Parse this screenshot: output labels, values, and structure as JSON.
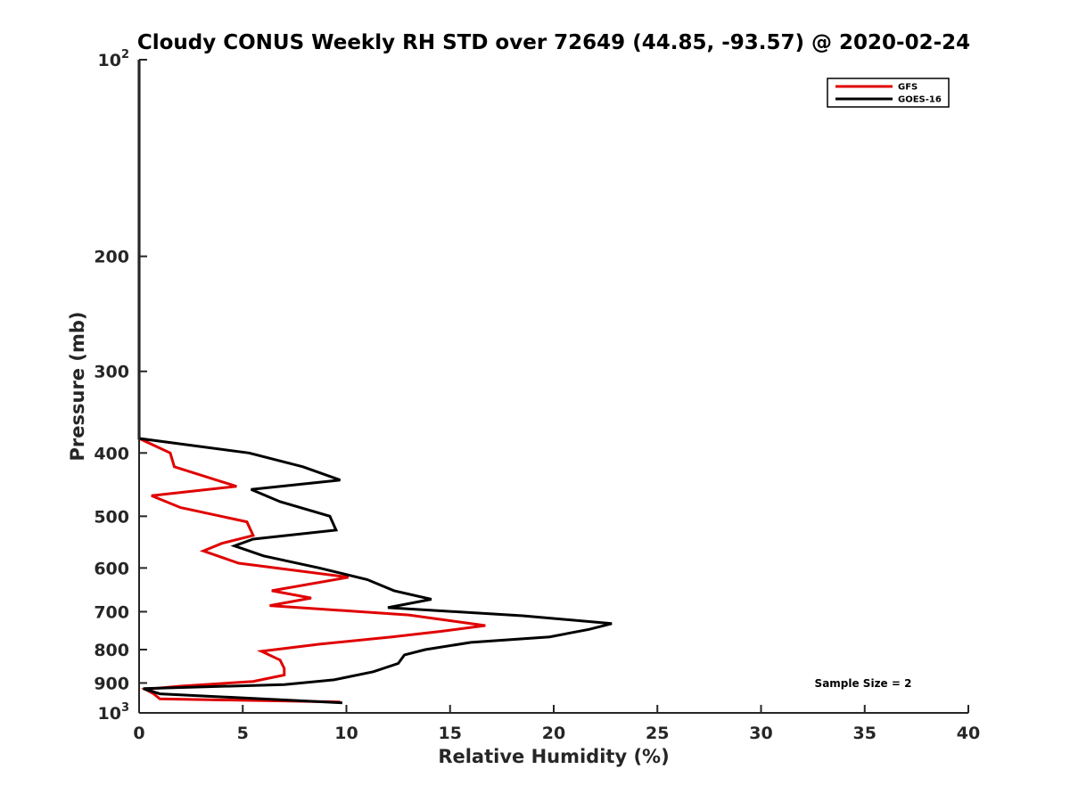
{
  "chart_data": {
    "type": "line",
    "title": "Cloudy CONUS Weekly RH STD over 72649 (44.85, -93.57) @ 2020-02-24",
    "xlabel": "Relative Humidity (%)",
    "ylabel": "Pressure (mb)",
    "xlim": [
      0,
      40
    ],
    "ylim": [
      100,
      1000
    ],
    "y_scale": "log",
    "y_reversed": true,
    "grid": false,
    "legend_position": "top-right",
    "x_ticks": [
      "0",
      "5",
      "10",
      "15",
      "20",
      "25",
      "30",
      "35",
      "40"
    ],
    "y_ticks": [
      {
        "value": 100,
        "base": "10",
        "exp": "2"
      },
      {
        "value": 200,
        "label": "200"
      },
      {
        "value": 300,
        "label": "300"
      },
      {
        "value": 400,
        "label": "400"
      },
      {
        "value": 500,
        "label": "500"
      },
      {
        "value": 600,
        "label": "600"
      },
      {
        "value": 700,
        "label": "700"
      },
      {
        "value": 800,
        "label": "800"
      },
      {
        "value": 900,
        "label": "900"
      },
      {
        "value": 1000,
        "base": "10",
        "exp": "3"
      }
    ],
    "annotation": "Sample Size = 2",
    "series": [
      {
        "name": "GFS",
        "color": "#e00000",
        "points": [
          [
            0,
            100
          ],
          [
            0,
            380
          ],
          [
            1.5,
            400
          ],
          [
            1.7,
            420
          ],
          [
            4.7,
            450
          ],
          [
            0.6,
            465
          ],
          [
            2.0,
            485
          ],
          [
            5.2,
            510
          ],
          [
            5.5,
            535
          ],
          [
            4.0,
            550
          ],
          [
            3.1,
            565
          ],
          [
            4.8,
            590
          ],
          [
            10.1,
            620
          ],
          [
            6.4,
            650
          ],
          [
            8.3,
            667
          ],
          [
            6.3,
            685
          ],
          [
            13.0,
            708
          ],
          [
            16.7,
            735
          ],
          [
            14.6,
            750
          ],
          [
            12.2,
            765
          ],
          [
            8.7,
            785
          ],
          [
            5.9,
            805
          ],
          [
            6.8,
            830
          ],
          [
            7.0,
            855
          ],
          [
            7.0,
            875
          ],
          [
            5.5,
            895
          ],
          [
            2.0,
            910
          ],
          [
            0.3,
            920
          ],
          [
            0.7,
            935
          ],
          [
            1.0,
            952
          ],
          [
            9.7,
            962
          ]
        ]
      },
      {
        "name": "GOES-16",
        "color": "#000000",
        "points": [
          [
            0,
            100
          ],
          [
            0,
            380
          ],
          [
            5.3,
            400
          ],
          [
            7.9,
            420
          ],
          [
            9.7,
            440
          ],
          [
            5.4,
            455
          ],
          [
            6.8,
            475
          ],
          [
            9.2,
            500
          ],
          [
            9.5,
            525
          ],
          [
            5.5,
            542
          ],
          [
            4.6,
            555
          ],
          [
            6.0,
            575
          ],
          [
            8.7,
            600
          ],
          [
            11.0,
            625
          ],
          [
            12.3,
            650
          ],
          [
            14.1,
            670
          ],
          [
            12.0,
            690
          ],
          [
            18.5,
            710
          ],
          [
            22.8,
            730
          ],
          [
            21.7,
            745
          ],
          [
            19.8,
            765
          ],
          [
            16.0,
            780
          ],
          [
            13.8,
            800
          ],
          [
            12.8,
            815
          ],
          [
            12.5,
            840
          ],
          [
            11.3,
            865
          ],
          [
            9.4,
            890
          ],
          [
            7.0,
            905
          ],
          [
            0.2,
            918
          ],
          [
            1.0,
            935
          ],
          [
            9.8,
            965
          ]
        ]
      }
    ]
  }
}
